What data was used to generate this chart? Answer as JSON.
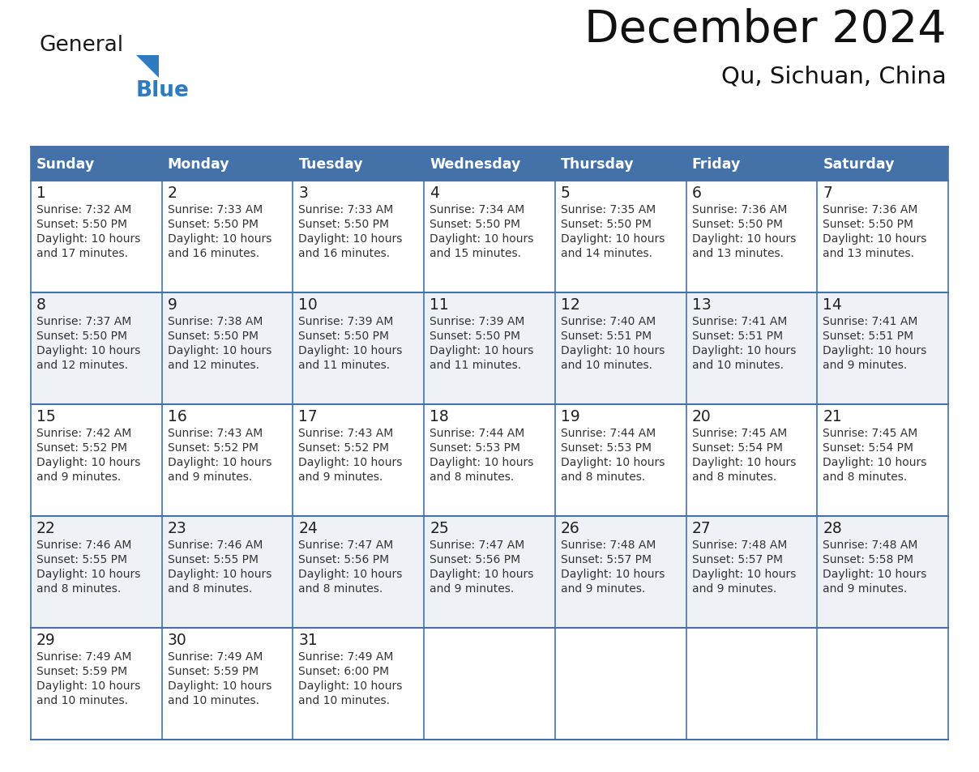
{
  "title": "December 2024",
  "subtitle": "Qu, Sichuan, China",
  "header_color": "#4472a8",
  "header_text_color": "#ffffff",
  "row_colors": [
    "#ffffff",
    "#eef2f7"
  ],
  "border_color": "#4472a8",
  "text_color": "#333333",
  "day_headers": [
    "Sunday",
    "Monday",
    "Tuesday",
    "Wednesday",
    "Thursday",
    "Friday",
    "Saturday"
  ],
  "weeks": [
    [
      {
        "day": 1,
        "sunrise": "7:32 AM",
        "sunset": "5:50 PM",
        "daylight": "10 hours",
        "daylight2": "and 17 minutes."
      },
      {
        "day": 2,
        "sunrise": "7:33 AM",
        "sunset": "5:50 PM",
        "daylight": "10 hours",
        "daylight2": "and 16 minutes."
      },
      {
        "day": 3,
        "sunrise": "7:33 AM",
        "sunset": "5:50 PM",
        "daylight": "10 hours",
        "daylight2": "and 16 minutes."
      },
      {
        "day": 4,
        "sunrise": "7:34 AM",
        "sunset": "5:50 PM",
        "daylight": "10 hours",
        "daylight2": "and 15 minutes."
      },
      {
        "day": 5,
        "sunrise": "7:35 AM",
        "sunset": "5:50 PM",
        "daylight": "10 hours",
        "daylight2": "and 14 minutes."
      },
      {
        "day": 6,
        "sunrise": "7:36 AM",
        "sunset": "5:50 PM",
        "daylight": "10 hours",
        "daylight2": "and 13 minutes."
      },
      {
        "day": 7,
        "sunrise": "7:36 AM",
        "sunset": "5:50 PM",
        "daylight": "10 hours",
        "daylight2": "and 13 minutes."
      }
    ],
    [
      {
        "day": 8,
        "sunrise": "7:37 AM",
        "sunset": "5:50 PM",
        "daylight": "10 hours",
        "daylight2": "and 12 minutes."
      },
      {
        "day": 9,
        "sunrise": "7:38 AM",
        "sunset": "5:50 PM",
        "daylight": "10 hours",
        "daylight2": "and 12 minutes."
      },
      {
        "day": 10,
        "sunrise": "7:39 AM",
        "sunset": "5:50 PM",
        "daylight": "10 hours",
        "daylight2": "and 11 minutes."
      },
      {
        "day": 11,
        "sunrise": "7:39 AM",
        "sunset": "5:50 PM",
        "daylight": "10 hours",
        "daylight2": "and 11 minutes."
      },
      {
        "day": 12,
        "sunrise": "7:40 AM",
        "sunset": "5:51 PM",
        "daylight": "10 hours",
        "daylight2": "and 10 minutes."
      },
      {
        "day": 13,
        "sunrise": "7:41 AM",
        "sunset": "5:51 PM",
        "daylight": "10 hours",
        "daylight2": "and 10 minutes."
      },
      {
        "day": 14,
        "sunrise": "7:41 AM",
        "sunset": "5:51 PM",
        "daylight": "10 hours",
        "daylight2": "and 9 minutes."
      }
    ],
    [
      {
        "day": 15,
        "sunrise": "7:42 AM",
        "sunset": "5:52 PM",
        "daylight": "10 hours",
        "daylight2": "and 9 minutes."
      },
      {
        "day": 16,
        "sunrise": "7:43 AM",
        "sunset": "5:52 PM",
        "daylight": "10 hours",
        "daylight2": "and 9 minutes."
      },
      {
        "day": 17,
        "sunrise": "7:43 AM",
        "sunset": "5:52 PM",
        "daylight": "10 hours",
        "daylight2": "and 9 minutes."
      },
      {
        "day": 18,
        "sunrise": "7:44 AM",
        "sunset": "5:53 PM",
        "daylight": "10 hours",
        "daylight2": "and 8 minutes."
      },
      {
        "day": 19,
        "sunrise": "7:44 AM",
        "sunset": "5:53 PM",
        "daylight": "10 hours",
        "daylight2": "and 8 minutes."
      },
      {
        "day": 20,
        "sunrise": "7:45 AM",
        "sunset": "5:54 PM",
        "daylight": "10 hours",
        "daylight2": "and 8 minutes."
      },
      {
        "day": 21,
        "sunrise": "7:45 AM",
        "sunset": "5:54 PM",
        "daylight": "10 hours",
        "daylight2": "and 8 minutes."
      }
    ],
    [
      {
        "day": 22,
        "sunrise": "7:46 AM",
        "sunset": "5:55 PM",
        "daylight": "10 hours",
        "daylight2": "and 8 minutes."
      },
      {
        "day": 23,
        "sunrise": "7:46 AM",
        "sunset": "5:55 PM",
        "daylight": "10 hours",
        "daylight2": "and 8 minutes."
      },
      {
        "day": 24,
        "sunrise": "7:47 AM",
        "sunset": "5:56 PM",
        "daylight": "10 hours",
        "daylight2": "and 8 minutes."
      },
      {
        "day": 25,
        "sunrise": "7:47 AM",
        "sunset": "5:56 PM",
        "daylight": "10 hours",
        "daylight2": "and 9 minutes."
      },
      {
        "day": 26,
        "sunrise": "7:48 AM",
        "sunset": "5:57 PM",
        "daylight": "10 hours",
        "daylight2": "and 9 minutes."
      },
      {
        "day": 27,
        "sunrise": "7:48 AM",
        "sunset": "5:57 PM",
        "daylight": "10 hours",
        "daylight2": "and 9 minutes."
      },
      {
        "day": 28,
        "sunrise": "7:48 AM",
        "sunset": "5:58 PM",
        "daylight": "10 hours",
        "daylight2": "and 9 minutes."
      }
    ],
    [
      {
        "day": 29,
        "sunrise": "7:49 AM",
        "sunset": "5:59 PM",
        "daylight": "10 hours",
        "daylight2": "and 10 minutes."
      },
      {
        "day": 30,
        "sunrise": "7:49 AM",
        "sunset": "5:59 PM",
        "daylight": "10 hours",
        "daylight2": "and 10 minutes."
      },
      {
        "day": 31,
        "sunrise": "7:49 AM",
        "sunset": "6:00 PM",
        "daylight": "10 hours",
        "daylight2": "and 10 minutes."
      },
      null,
      null,
      null,
      null
    ]
  ],
  "logo_color_general": "#1a1a1a",
  "logo_color_blue": "#2e7bbf",
  "logo_triangle_color": "#2e7bbf"
}
